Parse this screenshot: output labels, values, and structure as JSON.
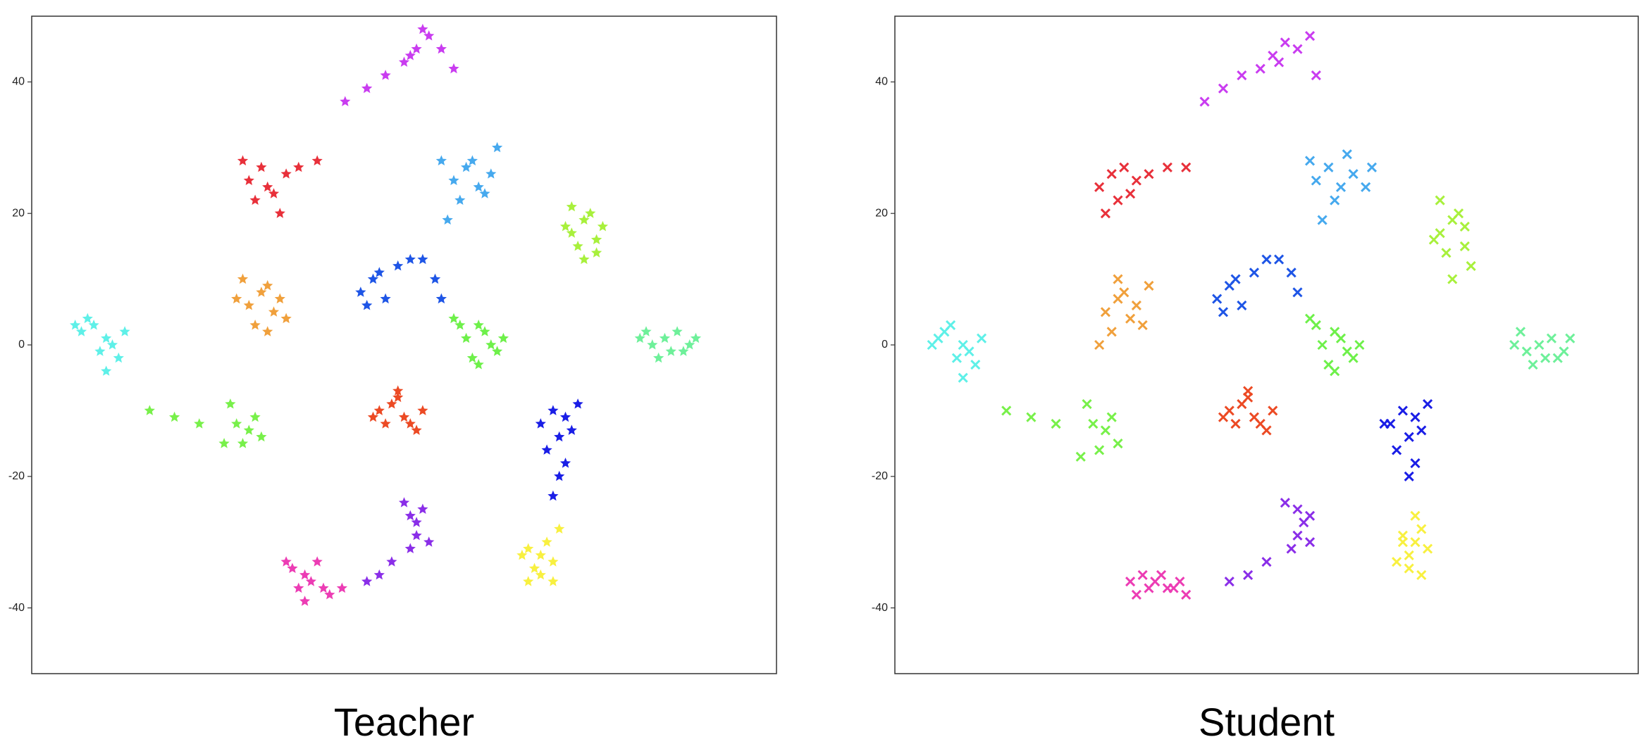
{
  "chart_data": [
    {
      "type": "scatter",
      "title": "Teacher",
      "marker": "star",
      "xlim": [
        -60,
        60
      ],
      "ylim": [
        -50,
        50
      ],
      "yticks": [
        -40,
        -20,
        0,
        20,
        40
      ],
      "series": [
        {
          "color": "#c93cf0",
          "x": [
            -9.5,
            -6,
            -3,
            0,
            2,
            4,
            6,
            3,
            1,
            8
          ],
          "y": [
            37,
            39,
            41,
            43,
            45,
            47,
            45,
            48,
            44,
            42
          ]
        },
        {
          "color": "#e8303a",
          "x": [
            -25,
            -23,
            -21,
            -19,
            -24,
            -22,
            -17,
            -14,
            -20,
            -26
          ],
          "y": [
            25,
            27,
            23,
            26,
            22,
            24,
            27,
            28,
            20,
            28
          ]
        },
        {
          "color": "#46a9ee",
          "x": [
            8,
            10,
            12,
            14,
            9,
            11,
            13,
            6,
            7,
            15
          ],
          "y": [
            25,
            27,
            24,
            26,
            22,
            28,
            23,
            28,
            19,
            30
          ]
        },
        {
          "color": "#a8f03c",
          "x": [
            27,
            29,
            31,
            28,
            30,
            26,
            32,
            29,
            27,
            31
          ],
          "y": [
            17,
            19,
            16,
            15,
            20,
            18,
            18,
            13,
            21,
            14
          ]
        },
        {
          "color": "#f0a03c",
          "x": [
            -25,
            -23,
            -21,
            -24,
            -22,
            -20,
            -26,
            -19,
            -22,
            -27
          ],
          "y": [
            6,
            8,
            5,
            3,
            9,
            7,
            10,
            4,
            2,
            7
          ]
        },
        {
          "color": "#1e55e6",
          "x": [
            -7,
            -5,
            -3,
            -6,
            -4,
            -1,
            1,
            3,
            5,
            6
          ],
          "y": [
            8,
            10,
            7,
            6,
            11,
            12,
            13,
            13,
            10,
            7
          ]
        },
        {
          "color": "#6ef04a",
          "x": [
            10,
            12,
            14,
            11,
            13,
            15,
            9,
            12,
            16,
            8
          ],
          "y": [
            1,
            3,
            0,
            -2,
            2,
            -1,
            3,
            -3,
            1,
            4
          ]
        },
        {
          "color": "#5ef0e8",
          "x": [
            -52,
            -50,
            -48,
            -49,
            -47,
            -51,
            -46,
            -48,
            -45,
            -53
          ],
          "y": [
            2,
            3,
            1,
            -1,
            0,
            4,
            -2,
            -4,
            2,
            3
          ]
        },
        {
          "color": "#6ef09a",
          "x": [
            38,
            40,
            42,
            44,
            46,
            41,
            43,
            45,
            39,
            47
          ],
          "y": [
            1,
            0,
            1,
            2,
            0,
            -2,
            -1,
            -1,
            2,
            1
          ]
        },
        {
          "color": "#78f04a",
          "x": [
            -27,
            -25,
            -26,
            -24,
            -28,
            -23,
            -33,
            -37,
            -41,
            -29
          ],
          "y": [
            -12,
            -13,
            -15,
            -11,
            -9,
            -14,
            -12,
            -11,
            -10,
            -15
          ]
        },
        {
          "color": "#ec4a24",
          "x": [
            -4,
            -2,
            0,
            -1,
            -3,
            1,
            2,
            -5,
            -1,
            3
          ],
          "y": [
            -10,
            -9,
            -11,
            -8,
            -12,
            -12,
            -13,
            -11,
            -7,
            -10
          ]
        },
        {
          "color": "#1a1ee6",
          "x": [
            22,
            24,
            26,
            28,
            25,
            27,
            23,
            26,
            25,
            24
          ],
          "y": [
            -12,
            -10,
            -11,
            -9,
            -14,
            -13,
            -16,
            -18,
            -20,
            -23
          ]
        },
        {
          "color": "#ec3cb4",
          "x": [
            -18,
            -16,
            -14,
            -17,
            -15,
            -13,
            -19,
            -12,
            -16,
            -10
          ],
          "y": [
            -34,
            -35,
            -33,
            -37,
            -36,
            -37,
            -33,
            -38,
            -39,
            -37
          ]
        },
        {
          "color": "#8a2ee8",
          "x": [
            0,
            1,
            2,
            3,
            2,
            1,
            4,
            -2,
            -4,
            -6
          ],
          "y": [
            -24,
            -26,
            -27,
            -25,
            -29,
            -31,
            -30,
            -33,
            -35,
            -36
          ]
        },
        {
          "color": "#f8f040",
          "x": [
            20,
            22,
            24,
            21,
            23,
            19,
            25,
            22,
            20,
            24
          ],
          "y": [
            -31,
            -32,
            -33,
            -34,
            -30,
            -32,
            -28,
            -35,
            -36,
            -36
          ]
        }
      ]
    },
    {
      "type": "scatter",
      "title": "Student",
      "marker": "x",
      "xlim": [
        -60,
        60
      ],
      "ylim": [
        -50,
        50
      ],
      "yticks": [
        -40,
        -20,
        0,
        20,
        40
      ],
      "series": [
        {
          "color": "#c93cf0",
          "x": [
            -10,
            -7,
            -4,
            -1,
            1,
            3,
            5,
            7,
            2,
            8
          ],
          "y": [
            37,
            39,
            41,
            42,
            44,
            46,
            45,
            47,
            43,
            41
          ]
        },
        {
          "color": "#e8303a",
          "x": [
            -27,
            -25,
            -23,
            -21,
            -19,
            -16,
            -13,
            -24,
            -26,
            -22
          ],
          "y": [
            24,
            26,
            27,
            25,
            26,
            27,
            27,
            22,
            20,
            23
          ]
        },
        {
          "color": "#46a9ee",
          "x": [
            8,
            10,
            12,
            14,
            16,
            11,
            13,
            7,
            9,
            17
          ],
          "y": [
            25,
            27,
            24,
            26,
            24,
            22,
            29,
            28,
            19,
            27
          ]
        },
        {
          "color": "#a8f03c",
          "x": [
            28,
            30,
            32,
            29,
            31,
            27,
            33,
            30,
            28,
            32
          ],
          "y": [
            17,
            19,
            15,
            14,
            20,
            16,
            12,
            10,
            22,
            18
          ]
        },
        {
          "color": "#f0a03c",
          "x": [
            -26,
            -24,
            -22,
            -25,
            -23,
            -21,
            -27,
            -20,
            -24,
            -19
          ],
          "y": [
            5,
            7,
            4,
            2,
            8,
            6,
            0,
            3,
            10,
            9
          ]
        },
        {
          "color": "#1e55e6",
          "x": [
            -8,
            -6,
            -4,
            -7,
            -5,
            -2,
            0,
            2,
            4,
            5
          ],
          "y": [
            7,
            9,
            6,
            5,
            10,
            11,
            13,
            13,
            11,
            8
          ]
        },
        {
          "color": "#6ef04a",
          "x": [
            9,
            11,
            13,
            10,
            12,
            14,
            8,
            11,
            15,
            7
          ],
          "y": [
            0,
            2,
            -1,
            -3,
            1,
            -2,
            3,
            -4,
            0,
            4
          ]
        },
        {
          "color": "#5ef0e8",
          "x": [
            -53,
            -51,
            -49,
            -50,
            -48,
            -52,
            -47,
            -49,
            -46,
            -54
          ],
          "y": [
            1,
            3,
            0,
            -2,
            -1,
            2,
            -3,
            -5,
            1,
            0
          ]
        },
        {
          "color": "#6ef09a",
          "x": [
            40,
            42,
            44,
            46,
            48,
            43,
            45,
            47,
            41,
            49
          ],
          "y": [
            0,
            -1,
            0,
            1,
            -1,
            -3,
            -2,
            -2,
            2,
            1
          ]
        },
        {
          "color": "#78f04a",
          "x": [
            -28,
            -26,
            -27,
            -25,
            -29,
            -24,
            -34,
            -38,
            -42,
            -30
          ],
          "y": [
            -12,
            -13,
            -16,
            -11,
            -9,
            -15,
            -12,
            -11,
            -10,
            -17
          ]
        },
        {
          "color": "#ec4a24",
          "x": [
            -6,
            -4,
            -2,
            -3,
            -5,
            -1,
            0,
            -7,
            -3,
            1
          ],
          "y": [
            -10,
            -9,
            -11,
            -8,
            -12,
            -12,
            -13,
            -11,
            -7,
            -10
          ]
        },
        {
          "color": "#1a1ee6",
          "x": [
            20,
            22,
            24,
            26,
            23,
            25,
            21,
            24,
            23,
            19
          ],
          "y": [
            -12,
            -10,
            -11,
            -9,
            -14,
            -13,
            -16,
            -18,
            -20,
            -12
          ]
        },
        {
          "color": "#ec3cb4",
          "x": [
            -22,
            -20,
            -18,
            -16,
            -14,
            -21,
            -19,
            -17,
            -15,
            -13
          ],
          "y": [
            -36,
            -35,
            -36,
            -37,
            -36,
            -38,
            -37,
            -35,
            -37,
            -38
          ]
        },
        {
          "color": "#8a2ee8",
          "x": [
            3,
            5,
            6,
            7,
            5,
            4,
            7,
            0,
            -3,
            -6
          ],
          "y": [
            -24,
            -25,
            -27,
            -26,
            -29,
            -31,
            -30,
            -33,
            -35,
            -36
          ]
        },
        {
          "color": "#f8f040",
          "x": [
            22,
            24,
            26,
            23,
            25,
            21,
            24,
            23,
            25,
            22
          ],
          "y": [
            -29,
            -30,
            -31,
            -32,
            -28,
            -33,
            -26,
            -34,
            -35,
            -30
          ]
        }
      ]
    }
  ]
}
